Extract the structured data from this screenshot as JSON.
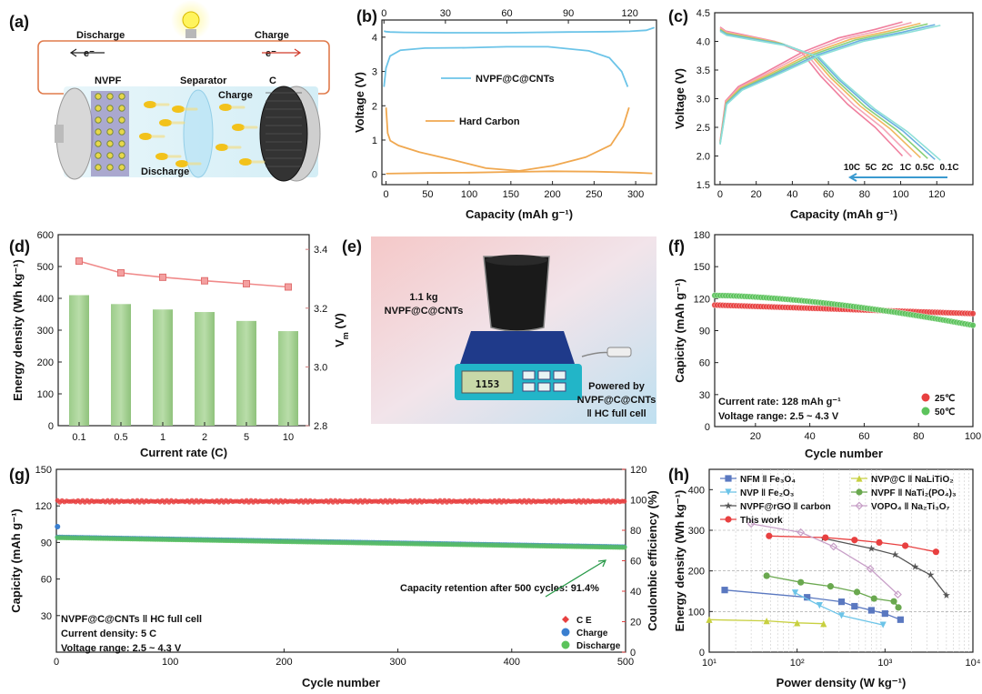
{
  "figure": {
    "panel_labels": [
      "(a)",
      "(b)",
      "(c)",
      "(d)",
      "(e)",
      "(f)",
      "(g)",
      "(h)"
    ]
  },
  "panel_a": {
    "discharge": "Discharge",
    "charge": "Charge",
    "electron": "e⁻",
    "cathode": "NVPF",
    "separator": "Separator",
    "anode": "C",
    "charge_inner": "Charge",
    "discharge_inner": "Discharge"
  },
  "panel_e": {
    "sample": [
      "1.1 kg",
      "NVPF@C@CNTs"
    ],
    "powered": [
      "Powered by",
      "NVPF@C@CNTs",
      "‖ HC full cell"
    ],
    "display": "1153"
  },
  "chart_data": [
    {
      "panel": "b",
      "type": "line",
      "xlabel": "Capacity (mAh g⁻¹)",
      "ylabel": "Voltage (V)",
      "xlim": [
        -5,
        325
      ],
      "xticks": [
        0,
        50,
        100,
        150,
        200,
        250,
        300
      ],
      "top_xlim": [
        -1,
        133
      ],
      "top_xticks": [
        0,
        30,
        60,
        90,
        120
      ],
      "ylim": [
        -0.3,
        4.5
      ],
      "yticks": [
        0,
        1,
        2,
        3,
        4
      ],
      "series": [
        {
          "name": "NVPF@C@CNTs",
          "color": "#6cc4e8",
          "axis": "top",
          "charge": {
            "x": [
              0,
              1,
              3,
              10,
              30,
              60,
              90,
              110,
              120,
              128,
              132
            ],
            "y": [
              4.18,
              4.16,
              4.15,
              4.14,
              4.13,
              4.13,
              4.15,
              4.16,
              4.17,
              4.2,
              4.28
            ]
          },
          "discharge": {
            "x": [
              0,
              1,
              3,
              8,
              20,
              40,
              60,
              80,
              100,
              110,
              116,
              119
            ],
            "y": [
              2.55,
              3.1,
              3.45,
              3.62,
              3.68,
              3.69,
              3.72,
              3.72,
              3.6,
              3.4,
              3.0,
              2.55
            ]
          }
        },
        {
          "name": "Hard Carbon",
          "color": "#f0a850",
          "axis": "bottom",
          "charge": {
            "x": [
              0,
              2,
              5,
              15,
              40,
              80,
              120,
              160,
              200,
              240,
              270,
              285,
              292
            ],
            "y": [
              1.95,
              1.2,
              0.98,
              0.84,
              0.65,
              0.42,
              0.18,
              0.1,
              0.25,
              0.5,
              0.85,
              1.4,
              1.95
            ]
          },
          "discharge": {
            "x": [
              0,
              50,
              100,
              150,
              200,
              250,
              300,
              320
            ],
            "y": [
              0.02,
              0.04,
              0.05,
              0.07,
              0.09,
              0.08,
              0.05,
              0.03
            ]
          }
        }
      ]
    },
    {
      "panel": "c",
      "type": "line",
      "xlabel": "Capacity (mAh g⁻¹)",
      "ylabel": "Voltage (V)",
      "xlim": [
        -3,
        140
      ],
      "xticks": [
        0,
        20,
        40,
        60,
        80,
        100,
        120
      ],
      "ylim": [
        1.5,
        4.5
      ],
      "yticks": [
        1.5,
        2.0,
        2.5,
        3.0,
        3.5,
        4.0,
        4.5
      ],
      "series": [
        {
          "name": "10C",
          "color": "#f07f9e",
          "cap": 101
        },
        {
          "name": "5C",
          "color": "#f4a6b6",
          "cap": 106
        },
        {
          "name": "2C",
          "color": "#f0b860",
          "cap": 111
        },
        {
          "name": "1C",
          "color": "#88d07a",
          "cap": 115
        },
        {
          "name": "0.5C",
          "color": "#6cb0e0",
          "cap": 119
        },
        {
          "name": "0.1C",
          "color": "#8ee0d8",
          "cap": 122
        }
      ]
    },
    {
      "panel": "d",
      "type": "bar",
      "categories": [
        "0.1",
        "0.5",
        "1",
        "2",
        "5",
        "10"
      ],
      "values": [
        410,
        382,
        365,
        357,
        329,
        297
      ],
      "vm": [
        3.36,
        3.32,
        3.305,
        3.293,
        3.283,
        3.272
      ],
      "xlabel": "Current rate (C)",
      "ylabel": "Energy density (Wh kg⁻¹)",
      "y2label": "Vm (V)",
      "ylim": [
        0,
        600
      ],
      "yticks": [
        0,
        100,
        200,
        300,
        400,
        500,
        600
      ],
      "y2lim": [
        2.8,
        3.45
      ],
      "y2ticks": [
        2.8,
        3.0,
        3.2,
        3.4
      ]
    },
    {
      "panel": "f",
      "type": "scatter",
      "xlabel": "Cycle number",
      "ylabel": "Capicity (mAh g⁻¹)",
      "xlim": [
        5,
        100
      ],
      "xticks": [
        20,
        40,
        60,
        80,
        100
      ],
      "ylim": [
        0,
        180
      ],
      "yticks": [
        0,
        30,
        60,
        90,
        120,
        150,
        180
      ],
      "annotations": [
        "Current rate: 128 mAh g⁻¹",
        "Voltage range: 2.5 ~ 4.3 V"
      ],
      "series": [
        {
          "name": "25℃",
          "color": "#e84040",
          "start": 114,
          "end": 106
        },
        {
          "name": "50℃",
          "color": "#5cc35c",
          "start": 123,
          "end": 95
        }
      ]
    },
    {
      "panel": "g",
      "type": "scatter",
      "xlabel": "Cycle number",
      "ylabel": "Capicity (mAh g⁻¹)",
      "y2label": "Coulombic efficiency (%)",
      "xlim": [
        0,
        500
      ],
      "xticks": [
        0,
        100,
        200,
        300,
        400,
        500
      ],
      "ylim": [
        0,
        150
      ],
      "yticks": [
        30,
        60,
        90,
        120,
        150
      ],
      "y2lim": [
        0,
        120
      ],
      "y2ticks": [
        0,
        20,
        40,
        60,
        80,
        100,
        120
      ],
      "annotations": [
        "NVPF@C@CNTs ‖ HC full cell",
        "Current density: 5 C",
        "Voltage range: 2.5 ~ 4.3 V"
      ],
      "retention": "Capacity retention after 500 cycles: 91.4%",
      "series": [
        {
          "name": "C E",
          "color": "#e84040",
          "value": 99
        },
        {
          "name": "Charge",
          "color": "#3a7fd0",
          "start": 94,
          "end": 86
        },
        {
          "name": "Discharge",
          "color": "#5cc35c",
          "start": 94,
          "end": 86
        }
      ]
    },
    {
      "panel": "h",
      "type": "line",
      "xlabel": "Power density (W kg⁻¹)",
      "ylabel": "Energy density (Wh kg⁻¹)",
      "xscale": "log",
      "xlim": [
        10,
        10000
      ],
      "xticks": [
        "10¹",
        "10²",
        "10³",
        "10⁴"
      ],
      "ylim": [
        0,
        450
      ],
      "yticks": [
        0,
        100,
        200,
        300,
        400
      ],
      "series": [
        {
          "name": "NFM ‖ Fe₃O₄",
          "color": "#5a78c0",
          "marker": "square",
          "x": [
            15,
            130,
            320,
            450,
            700,
            1000,
            1500
          ],
          "y": [
            153,
            135,
            124,
            113,
            103,
            95,
            80
          ]
        },
        {
          "name": "NVP ‖ Fe₂O₃",
          "color": "#6cc4e8",
          "marker": "tri-down",
          "x": [
            95,
            180,
            320,
            950
          ],
          "y": [
            146,
            115,
            90,
            67
          ]
        },
        {
          "name": "NVPF@rGO ‖ carbon",
          "color": "#555555",
          "marker": "star",
          "x": [
            200,
            700,
            1300,
            2200,
            3300,
            5000
          ],
          "y": [
            280,
            255,
            240,
            210,
            190,
            140
          ]
        },
        {
          "name": "This work",
          "color": "#e84040",
          "marker": "circle",
          "x": [
            48,
            210,
            450,
            860,
            1700,
            3800
          ],
          "y": [
            286,
            282,
            276,
            270,
            262,
            247
          ]
        },
        {
          "name": "NVP@C ‖ NaLiTiO₂",
          "color": "#c8d040",
          "marker": "tri-up",
          "x": [
            10,
            45,
            100,
            200
          ],
          "y": [
            80,
            77,
            72,
            70
          ]
        },
        {
          "name": "NVPF ‖ NaTi₂(PO₄)₃",
          "color": "#6aa84f",
          "marker": "circle",
          "x": [
            45,
            110,
            240,
            480,
            750,
            1260,
            1420
          ],
          "y": [
            188,
            172,
            162,
            148,
            132,
            125,
            110
          ]
        },
        {
          "name": "VOPO₄ ‖ Na₂Ti₃O₇",
          "color": "#c8a0c8",
          "marker": "diamond",
          "x": [
            30,
            110,
            260,
            680,
            1400
          ],
          "y": [
            316,
            295,
            260,
            205,
            142
          ]
        }
      ]
    }
  ]
}
